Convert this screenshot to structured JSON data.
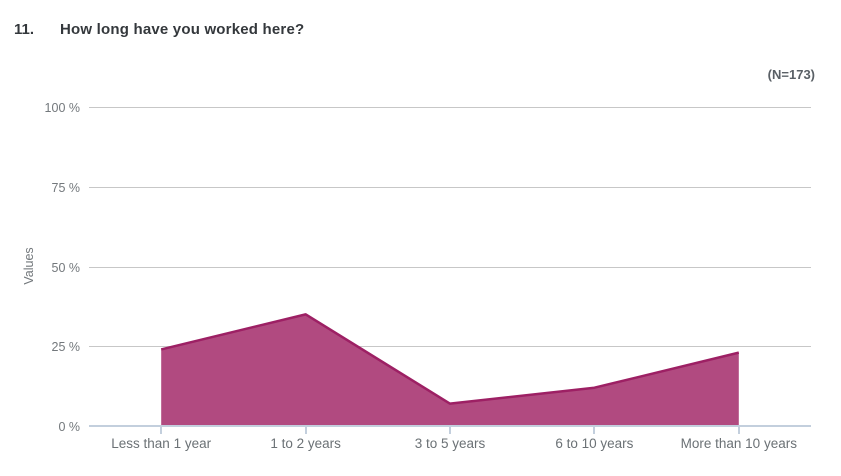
{
  "header": {
    "question_number": "11.",
    "title": "How long have you worked here?",
    "n_label": "(N=173)"
  },
  "chart_data": {
    "type": "area",
    "title": "How long have you worked here?",
    "n_label": "(N=173)",
    "categories": [
      "Less than 1 year",
      "1 to 2 years",
      "3 to 5 years",
      "6 to 10 years",
      "More than 10 years"
    ],
    "values": [
      24,
      35,
      7,
      12,
      23
    ],
    "xlabel": "",
    "ylabel": "Values",
    "ylim": [
      0,
      100
    ],
    "yticks": [
      0,
      25,
      50,
      75,
      100
    ],
    "ytick_labels": [
      "0 %",
      "25 %",
      "50 %",
      "75 %",
      "100 %"
    ],
    "grid": "horizontal",
    "legend": "none",
    "fill_color": "#b14a80",
    "line_color": "#9d2064",
    "grid_color": "#c7c7c7",
    "axis_color": "#c3cfdd",
    "tick_text_color": "#73787c"
  }
}
